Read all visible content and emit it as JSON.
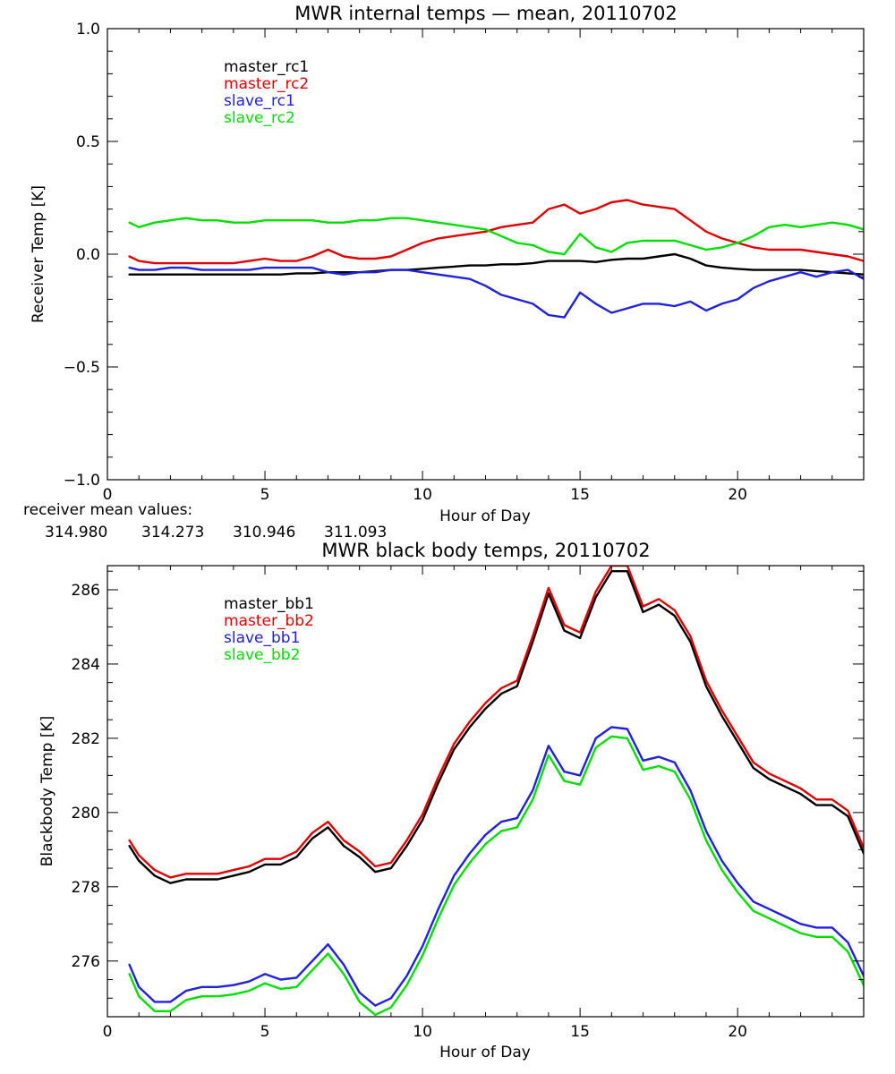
{
  "colors": {
    "black": "#000000",
    "red": "#e00000",
    "blue": "#2020e0",
    "green": "#00e000"
  },
  "receiver_mean": {
    "label": "receiver mean values:",
    "values": [
      "314.980",
      "314.273",
      "310.946",
      "311.093"
    ],
    "colors": [
      "#000000",
      "#e00000",
      "#2020e0",
      "#00e000"
    ]
  },
  "chart_data": [
    {
      "type": "line",
      "title": "MWR internal temps — mean, 20110702",
      "xlabel": "Hour of Day",
      "ylabel": "Receiver Temp [K]",
      "xlim": [
        0,
        24
      ],
      "ylim": [
        -1.0,
        1.0
      ],
      "x_ticks": [
        0,
        5,
        10,
        15,
        20
      ],
      "y_ticks": [
        -1.0,
        -0.5,
        0.0,
        0.5,
        1.0
      ],
      "y_tick_labels": [
        "−1.0",
        "−0.5",
        "0.0",
        "0.5",
        "1.0"
      ],
      "legend_position": "top-left",
      "grid": false,
      "x": [
        0.7,
        1,
        1.5,
        2,
        2.5,
        3,
        3.5,
        4,
        4.5,
        5,
        5.5,
        6,
        6.5,
        7,
        7.5,
        8,
        8.5,
        9,
        9.5,
        10,
        10.5,
        11,
        11.5,
        12,
        12.5,
        13,
        13.5,
        14,
        14.5,
        15,
        15.5,
        16,
        16.5,
        17,
        17.5,
        18,
        18.5,
        19,
        19.5,
        20,
        20.5,
        21,
        21.5,
        22,
        22.5,
        23,
        23.5,
        24
      ],
      "series": [
        {
          "name": "master_rc1",
          "color": "#000000",
          "values": [
            -0.09,
            -0.09,
            -0.09,
            -0.09,
            -0.09,
            -0.09,
            -0.09,
            -0.09,
            -0.09,
            -0.09,
            -0.09,
            -0.085,
            -0.085,
            -0.08,
            -0.08,
            -0.08,
            -0.075,
            -0.07,
            -0.07,
            -0.065,
            -0.06,
            -0.055,
            -0.05,
            -0.05,
            -0.045,
            -0.045,
            -0.04,
            -0.03,
            -0.03,
            -0.03,
            -0.035,
            -0.025,
            -0.02,
            -0.02,
            -0.01,
            0.0,
            -0.02,
            -0.05,
            -0.06,
            -0.065,
            -0.07,
            -0.07,
            -0.07,
            -0.07,
            -0.075,
            -0.08,
            -0.085,
            -0.09
          ]
        },
        {
          "name": "master_rc2",
          "color": "#e00000",
          "values": [
            -0.01,
            -0.03,
            -0.04,
            -0.04,
            -0.04,
            -0.04,
            -0.04,
            -0.04,
            -0.03,
            -0.02,
            -0.03,
            -0.03,
            -0.01,
            0.02,
            -0.01,
            -0.02,
            -0.02,
            -0.01,
            0.02,
            0.05,
            0.07,
            0.08,
            0.09,
            0.1,
            0.12,
            0.13,
            0.14,
            0.2,
            0.22,
            0.18,
            0.2,
            0.23,
            0.24,
            0.22,
            0.21,
            0.2,
            0.15,
            0.1,
            0.07,
            0.05,
            0.03,
            0.02,
            0.02,
            0.02,
            0.01,
            0.0,
            -0.01,
            -0.03
          ]
        },
        {
          "name": "slave_rc1",
          "color": "#2020e0",
          "values": [
            -0.06,
            -0.07,
            -0.07,
            -0.06,
            -0.06,
            -0.07,
            -0.07,
            -0.07,
            -0.07,
            -0.06,
            -0.06,
            -0.06,
            -0.06,
            -0.08,
            -0.09,
            -0.08,
            -0.08,
            -0.07,
            -0.07,
            -0.08,
            -0.09,
            -0.1,
            -0.11,
            -0.14,
            -0.18,
            -0.2,
            -0.22,
            -0.27,
            -0.28,
            -0.17,
            -0.22,
            -0.26,
            -0.24,
            -0.22,
            -0.22,
            -0.23,
            -0.21,
            -0.25,
            -0.22,
            -0.2,
            -0.15,
            -0.12,
            -0.1,
            -0.08,
            -0.1,
            -0.08,
            -0.07,
            -0.11
          ]
        },
        {
          "name": "slave_rc2",
          "color": "#00e000",
          "values": [
            0.14,
            0.12,
            0.14,
            0.15,
            0.16,
            0.15,
            0.15,
            0.14,
            0.14,
            0.15,
            0.15,
            0.15,
            0.15,
            0.14,
            0.14,
            0.15,
            0.15,
            0.16,
            0.16,
            0.15,
            0.14,
            0.13,
            0.12,
            0.11,
            0.08,
            0.05,
            0.04,
            0.01,
            0.0,
            0.09,
            0.03,
            0.01,
            0.05,
            0.06,
            0.06,
            0.06,
            0.04,
            0.02,
            0.03,
            0.05,
            0.08,
            0.12,
            0.13,
            0.12,
            0.13,
            0.14,
            0.13,
            0.11
          ]
        }
      ]
    },
    {
      "type": "line",
      "title": "MWR black body temps, 20110702",
      "xlabel": "Hour of Day",
      "ylabel": "Blackbody Temp [K]",
      "xlim": [
        0,
        24
      ],
      "ylim": [
        274.5,
        286.65
      ],
      "x_ticks": [
        0,
        5,
        10,
        15,
        20
      ],
      "y_ticks": [
        276,
        278,
        280,
        282,
        284,
        286
      ],
      "y_tick_labels": [
        "276",
        "278",
        "280",
        "282",
        "284",
        "286"
      ],
      "legend_position": "top-left",
      "grid": false,
      "x": [
        0.7,
        1,
        1.5,
        2,
        2.5,
        3,
        3.5,
        4,
        4.5,
        5,
        5.5,
        6,
        6.5,
        7,
        7.5,
        8,
        8.5,
        9,
        9.5,
        10,
        10.5,
        11,
        11.5,
        12,
        12.5,
        13,
        13.5,
        14,
        14.5,
        15,
        15.5,
        16,
        16.5,
        17,
        17.5,
        18,
        18.5,
        19,
        19.5,
        20,
        20.5,
        21,
        21.5,
        22,
        22.5,
        23,
        23.5,
        24
      ],
      "series": [
        {
          "name": "master_bb1",
          "color": "#000000",
          "values": [
            279.1,
            278.7,
            278.3,
            278.1,
            278.2,
            278.2,
            278.2,
            278.3,
            278.4,
            278.6,
            278.6,
            278.8,
            279.3,
            279.6,
            279.1,
            278.8,
            278.4,
            278.5,
            279.1,
            279.8,
            280.8,
            281.7,
            282.3,
            282.8,
            283.2,
            283.4,
            284.6,
            285.9,
            284.9,
            284.7,
            285.8,
            286.5,
            286.5,
            285.4,
            285.6,
            285.3,
            284.6,
            283.4,
            282.6,
            281.9,
            281.2,
            280.9,
            280.7,
            280.5,
            280.2,
            280.2,
            279.9,
            278.9
          ]
        },
        {
          "name": "master_bb2",
          "color": "#e00000",
          "values": [
            279.25,
            278.85,
            278.45,
            278.25,
            278.35,
            278.35,
            278.35,
            278.45,
            278.55,
            278.75,
            278.75,
            278.95,
            279.45,
            279.75,
            279.25,
            278.95,
            278.55,
            278.65,
            279.25,
            279.95,
            280.95,
            281.85,
            282.45,
            282.95,
            283.35,
            283.55,
            284.75,
            286.05,
            285.05,
            284.85,
            285.95,
            286.65,
            286.65,
            285.55,
            285.75,
            285.45,
            284.75,
            283.55,
            282.75,
            282.05,
            281.35,
            281.05,
            280.85,
            280.65,
            280.35,
            280.35,
            280.05,
            279.05
          ]
        },
        {
          "name": "slave_bb1",
          "color": "#2020e0",
          "values": [
            275.9,
            275.3,
            274.9,
            274.9,
            275.2,
            275.3,
            275.3,
            275.35,
            275.45,
            275.65,
            275.5,
            275.55,
            276.0,
            276.45,
            275.9,
            275.15,
            274.8,
            275.0,
            275.6,
            276.4,
            277.4,
            278.3,
            278.9,
            279.4,
            279.75,
            279.85,
            280.6,
            281.8,
            281.1,
            281.0,
            282.0,
            282.3,
            282.25,
            281.4,
            281.5,
            281.35,
            280.6,
            279.5,
            278.7,
            278.1,
            277.6,
            277.4,
            277.2,
            277.0,
            276.9,
            276.9,
            276.5,
            275.6
          ]
        },
        {
          "name": "slave_bb2",
          "color": "#00e000",
          "values": [
            275.65,
            275.05,
            274.65,
            274.65,
            274.95,
            275.05,
            275.05,
            275.1,
            275.2,
            275.4,
            275.25,
            275.3,
            275.75,
            276.2,
            275.65,
            274.9,
            274.55,
            274.75,
            275.35,
            276.15,
            277.15,
            278.05,
            278.65,
            279.15,
            279.5,
            279.6,
            280.35,
            281.55,
            280.85,
            280.75,
            281.75,
            282.05,
            282.0,
            281.15,
            281.25,
            281.1,
            280.35,
            279.25,
            278.45,
            277.85,
            277.35,
            277.15,
            276.95,
            276.75,
            276.65,
            276.65,
            276.25,
            275.35
          ]
        }
      ]
    }
  ]
}
